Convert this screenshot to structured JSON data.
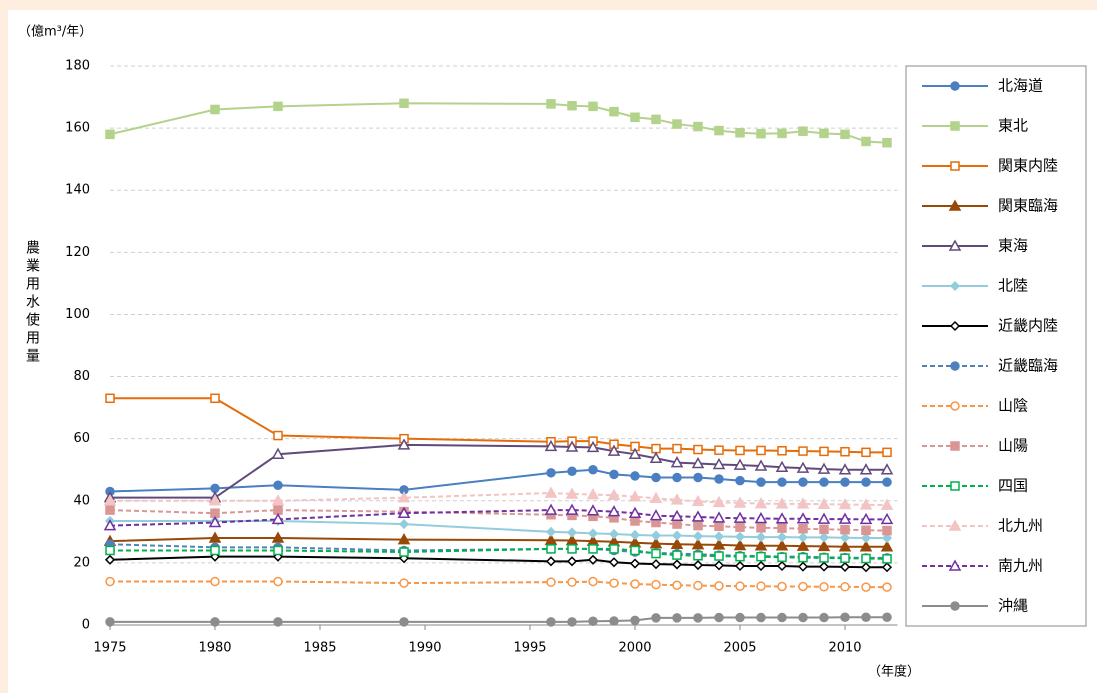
{
  "chart_data": {
    "type": "line",
    "y_unit": "（億m³/年）",
    "x_unit": "（年度）",
    "y_label": "農業用水使用量",
    "x": [
      1975,
      1980,
      1983,
      1989,
      1996,
      1997,
      1998,
      1999,
      2000,
      2001,
      2002,
      2003,
      2004,
      2005,
      2006,
      2007,
      2008,
      2009,
      2010,
      2011,
      2012
    ],
    "xlim": [
      1975,
      2012.5
    ],
    "xticks": [
      1975,
      1980,
      1985,
      1990,
      1995,
      2000,
      2005,
      2010
    ],
    "ylim": [
      0,
      180
    ],
    "yticks": [
      0,
      20,
      40,
      60,
      80,
      100,
      120,
      140,
      160,
      180
    ],
    "grid": true,
    "legend": "right",
    "series": [
      {
        "name": "北海道",
        "color": "#4a7fc1",
        "marker": "circle",
        "filled": true,
        "dashed": false,
        "values": [
          43,
          44,
          45,
          43.5,
          49,
          49.5,
          50,
          48.5,
          48,
          47.5,
          47.5,
          47.5,
          47,
          46.5,
          46,
          46,
          46,
          46,
          46,
          46,
          46
        ]
      },
      {
        "name": "東北",
        "color": "#b3d28c",
        "marker": "square",
        "filled": true,
        "dashed": false,
        "values": [
          158,
          166,
          167,
          168,
          167.8,
          167.2,
          167,
          165.3,
          163.5,
          162.8,
          161.3,
          160.5,
          159.2,
          158.5,
          158.2,
          158.3,
          159,
          158.3,
          158,
          155.7,
          155.3
        ]
      },
      {
        "name": "関東内陸",
        "color": "#e46c0a",
        "marker": "square",
        "filled": false,
        "dashed": false,
        "values": [
          73,
          73,
          61,
          60,
          59,
          59.2,
          59.2,
          58.2,
          57.5,
          56.8,
          56.8,
          56.5,
          56.3,
          56.2,
          56.2,
          56.1,
          56,
          55.9,
          55.8,
          55.6,
          55.6
        ]
      },
      {
        "name": "関東臨海",
        "color": "#984807",
        "marker": "triangle",
        "filled": true,
        "dashed": false,
        "values": [
          27,
          28,
          28,
          27.5,
          27.3,
          27.2,
          27,
          26.8,
          26.5,
          26.2,
          26,
          25.9,
          25.8,
          25.6,
          25.5,
          25.5,
          25.4,
          25.3,
          25.2,
          25.2,
          25.2
        ]
      },
      {
        "name": "東海",
        "color": "#604a7b",
        "marker": "triangle",
        "filled": false,
        "dashed": false,
        "values": [
          41,
          41,
          55,
          58,
          57.5,
          57.3,
          57.2,
          56,
          55,
          53.7,
          52.3,
          52,
          51.7,
          51.5,
          51.2,
          50.8,
          50.5,
          50.2,
          50,
          50,
          50
        ]
      },
      {
        "name": "北陸",
        "color": "#93cddd",
        "marker": "diamond",
        "filled": true,
        "dashed": false,
        "values": [
          33.5,
          33.5,
          33.5,
          32.5,
          30,
          29.8,
          29.5,
          29.3,
          29,
          28.8,
          28.8,
          28.6,
          28.5,
          28.4,
          28.3,
          28.3,
          28.2,
          28.2,
          28.1,
          28,
          28
        ]
      },
      {
        "name": "近畿内陸",
        "color": "#000000",
        "marker": "diamond",
        "filled": false,
        "dashed": false,
        "values": [
          21,
          22,
          22,
          21.5,
          20.5,
          20.5,
          21,
          20.2,
          19.8,
          19.6,
          19.5,
          19.3,
          19.2,
          19,
          19,
          19,
          18.8,
          18.8,
          18.7,
          18.6,
          18.6
        ]
      },
      {
        "name": "近畿臨海",
        "color": "#4f81bd",
        "marker": "circle",
        "filled": true,
        "dashed": true,
        "values": [
          26,
          25,
          25,
          24,
          24.5,
          24.5,
          24.5,
          24,
          23.5,
          23.2,
          23,
          22.8,
          22.5,
          22.3,
          22.2,
          22,
          22,
          21.8,
          21.7,
          21.6,
          21.6
        ]
      },
      {
        "name": "山陰",
        "color": "#f79646",
        "marker": "circle",
        "filled": false,
        "dashed": true,
        "values": [
          14,
          14,
          14,
          13.5,
          13.8,
          13.8,
          14,
          13.5,
          13.2,
          13,
          12.8,
          12.7,
          12.6,
          12.5,
          12.5,
          12.4,
          12.4,
          12.3,
          12.3,
          12.2,
          12.2
        ]
      },
      {
        "name": "山陽",
        "color": "#d99694",
        "marker": "square",
        "filled": true,
        "dashed": true,
        "values": [
          37,
          36,
          37,
          36.5,
          35.5,
          35.3,
          35,
          34.5,
          33.5,
          33,
          32.5,
          32,
          31.8,
          31.5,
          31.3,
          31.2,
          31,
          30.8,
          30.7,
          30.5,
          30.4
        ]
      },
      {
        "name": "四国",
        "color": "#00b050",
        "marker": "square",
        "filled": false,
        "dashed": true,
        "values": [
          24,
          24,
          24,
          23.5,
          24.5,
          24.5,
          24.5,
          24.5,
          24,
          23,
          22.5,
          22.3,
          22.2,
          22,
          22,
          21.8,
          21.7,
          21.6,
          21.5,
          21.4,
          21.3
        ]
      },
      {
        "name": "北九州",
        "color": "#f2c4c4",
        "marker": "triangle",
        "filled": true,
        "dashed": true,
        "values": [
          40,
          40,
          40,
          41,
          42.5,
          42.2,
          42,
          41.8,
          41.3,
          40.8,
          40.3,
          39.8,
          39.5,
          39.3,
          39.1,
          39,
          39,
          38.9,
          38.8,
          38.7,
          38.6
        ]
      },
      {
        "name": "南九州",
        "color": "#7030a0",
        "marker": "triangle",
        "filled": false,
        "dashed": true,
        "values": [
          32,
          33,
          34,
          36,
          37,
          37,
          36.8,
          36.5,
          36,
          35.2,
          35,
          34.8,
          34.5,
          34.4,
          34.3,
          34.2,
          34.2,
          34.1,
          34.1,
          34,
          34
        ]
      },
      {
        "name": "沖縄",
        "color": "#8c8c8c",
        "marker": "circle",
        "filled": true,
        "dashed": false,
        "values": [
          1,
          1,
          1,
          1,
          1,
          1,
          1.2,
          1.3,
          1.5,
          2.3,
          2.3,
          2.3,
          2.4,
          2.4,
          2.4,
          2.4,
          2.4,
          2.4,
          2.5,
          2.5,
          2.5
        ]
      }
    ]
  }
}
